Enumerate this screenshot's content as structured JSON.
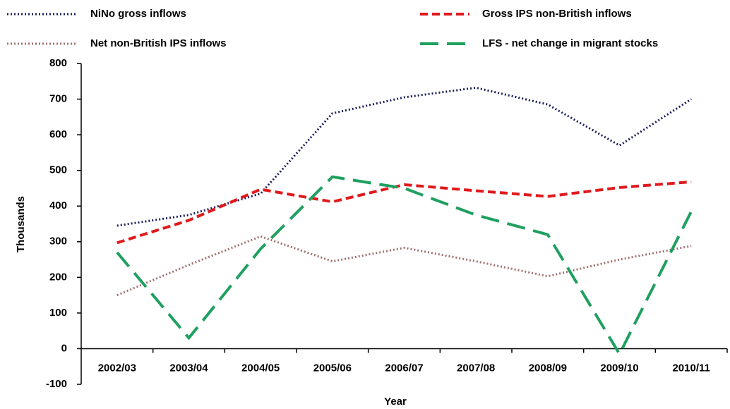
{
  "chart_data": {
    "type": "line",
    "x_label": "Year",
    "y_label": "Thousands",
    "categories": [
      "2002/03",
      "2003/04",
      "2004/05",
      "2005/06",
      "2006/07",
      "2007/08",
      "2008/09",
      "2009/10",
      "2010/11"
    ],
    "series": [
      {
        "name": "NiNo gross inflows",
        "color": "#1c1c5a",
        "style": "dotted",
        "values": [
          345,
          375,
          435,
          660,
          705,
          732,
          685,
          570,
          700
        ]
      },
      {
        "name": "Gross IPS non-British inflows",
        "color": "#e0191c",
        "style": "dashed",
        "values": [
          297,
          360,
          447,
          412,
          460,
          443,
          427,
          452,
          468
        ]
      },
      {
        "name": "Net non-British IPS inflows",
        "color": "#a07070",
        "style": "dotted",
        "values": [
          150,
          235,
          315,
          245,
          283,
          245,
          203,
          250,
          288
        ]
      },
      {
        "name": "LFS - net change in migrant stocks",
        "color": "#1fa060",
        "style": "longdash",
        "values": [
          270,
          30,
          280,
          482,
          450,
          375,
          320,
          -15,
          385
        ]
      }
    ],
    "ylim": [
      -100,
      800
    ],
    "yticks": [
      -100,
      0,
      100,
      200,
      300,
      400,
      500,
      600,
      700,
      800
    ],
    "legend": "top"
  }
}
